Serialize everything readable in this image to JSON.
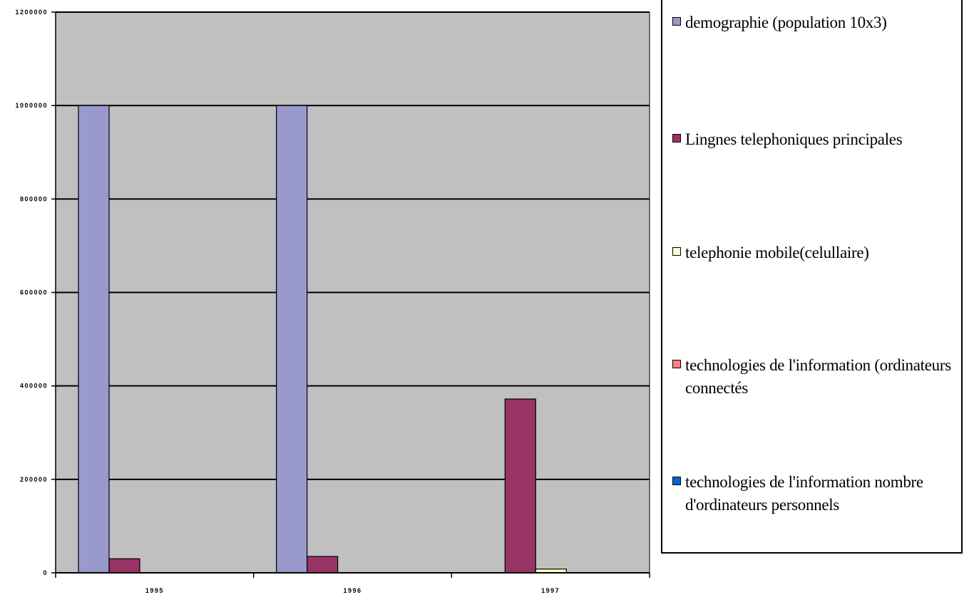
{
  "chart_data": {
    "type": "bar",
    "categories": [
      "1995",
      "1996",
      "1997"
    ],
    "series": [
      {
        "name": "demographie (population 10x3)",
        "values": [
          1000000,
          1000000,
          0
        ],
        "color": "#9999cc"
      },
      {
        "name": "Lingnes telephoniques principales",
        "values": [
          30000,
          35000,
          372000
        ],
        "color": "#993366"
      },
      {
        "name": "telephonie mobile(celullaire)",
        "values": [
          0,
          0,
          8000
        ],
        "color": "#ffffcc"
      },
      {
        "name": "technologies de l'information (ordinateurs connectés",
        "values": [
          0,
          0,
          0
        ],
        "color": "#ff8080"
      },
      {
        "name": "technologies de l'information nombre d'ordinateurs personnels",
        "values": [
          0,
          0,
          0
        ],
        "color": "#0066cc"
      }
    ],
    "ylim": [
      0,
      1200000
    ],
    "yticks": [
      "0",
      "200000",
      "400000",
      "600000",
      "800000",
      "1000000",
      "1200000"
    ],
    "grid": true,
    "plot_background": "#c0c0c0",
    "legend_position": "right"
  }
}
